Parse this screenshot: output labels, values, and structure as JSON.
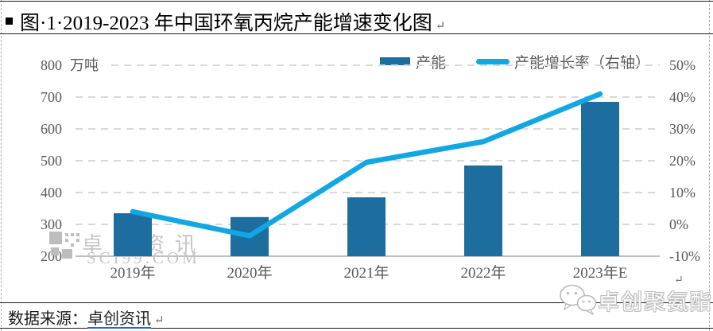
{
  "title": {
    "bullet_icon": "square-bullet",
    "text": "图·1·2019-2023 年中国环氧丙烷产能增速变化图",
    "pilcrow": "↵"
  },
  "legend": {
    "items": [
      {
        "label": "产能",
        "swatch": "bar"
      },
      {
        "label": "产能增长率（右轴）",
        "swatch": "line"
      }
    ]
  },
  "chart_data": {
    "type": "bar+line combo, dual axis",
    "categories": [
      "2019年",
      "2020年",
      "2021年",
      "2022年",
      "2023年E"
    ],
    "series": [
      {
        "name": "产能",
        "type": "bar",
        "axis": "left",
        "unit": "万吨",
        "values": [
          335,
          323,
          385,
          485,
          685
        ]
      },
      {
        "name": "产能增长率（右轴）",
        "type": "line",
        "axis": "right",
        "unit": "%",
        "values": [
          4,
          -3.6,
          19.5,
          26,
          41
        ]
      }
    ],
    "left_axis": {
      "unit_label": "万吨",
      "min": 200,
      "max": 800,
      "step": 100,
      "ticks": [
        "800",
        "700",
        "600",
        "500",
        "400",
        "300",
        "200"
      ]
    },
    "right_axis": {
      "min": -10,
      "max": 50,
      "step": 10,
      "ticks": [
        "50%",
        "40%",
        "30%",
        "20%",
        "10%",
        "0%",
        "-10%"
      ]
    },
    "grid": "horizontal dashed",
    "legend_position": "top"
  },
  "colors": {
    "bar": "#1d6d9e",
    "line": "#12a7e3",
    "grid": "#d9d9d9",
    "baseline": "#c0c0c0",
    "axis_text": "#595959",
    "link_underline": "#1f6ad1",
    "watermark": "#c6c6c6"
  },
  "watermark_center": {
    "name": "卓创资讯",
    "sub": "SCI99.COM",
    "logo_icon": "sci99-pixel-logo"
  },
  "watermark_footer": {
    "icon": "wechat-icon",
    "text": "卓创聚氨酯"
  },
  "chart_pilcrow": "↵",
  "source": {
    "label": "数据来源：",
    "link": "卓创资讯",
    "pilcrow": "↵"
  }
}
